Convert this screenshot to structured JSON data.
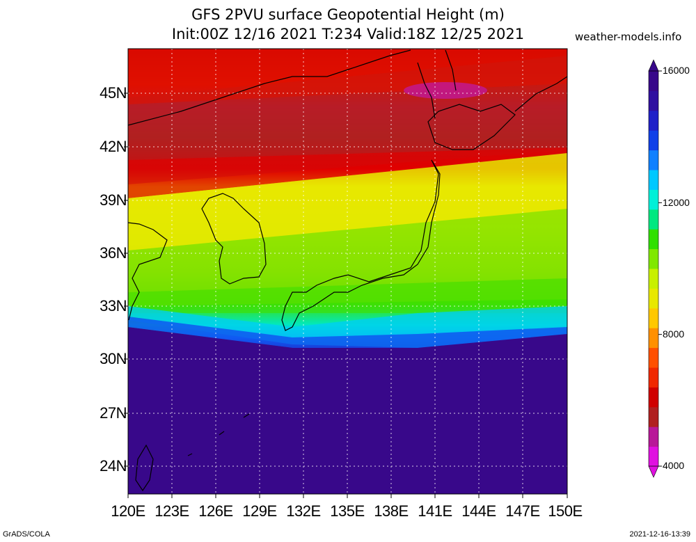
{
  "header": {
    "title_line1": "GFS 2PVU surface Geopotential Height (m)",
    "title_line2": "Init:00Z 12/16 2021 T:234 Valid:18Z 12/25 2021",
    "site": "weather-models.info"
  },
  "axes": {
    "lat_labels": [
      "45N",
      "42N",
      "39N",
      "36N",
      "33N",
      "30N",
      "27N",
      "24N"
    ],
    "lat_values": [
      45,
      42,
      39,
      36,
      33,
      30,
      27,
      24
    ],
    "lon_labels": [
      "120E",
      "123E",
      "126E",
      "129E",
      "132E",
      "135E",
      "138E",
      "141E",
      "144E",
      "147E",
      "150E"
    ],
    "lon_values": [
      120,
      123,
      126,
      129,
      132,
      135,
      138,
      141,
      144,
      147,
      150
    ]
  },
  "colorbar": {
    "labels": [
      "16000",
      "12000",
      "8000",
      "4000"
    ],
    "colors": [
      "#e010e0",
      "#b81898",
      "#b02020",
      "#d00000",
      "#f02800",
      "#ff5000",
      "#ff9000",
      "#ffc800",
      "#e8e800",
      "#c8f000",
      "#80e800",
      "#30e000",
      "#00e880",
      "#00f0d8",
      "#00c8ff",
      "#1080ff",
      "#1040e8",
      "#2020c8",
      "#3010a0",
      "#38088a"
    ]
  },
  "footer": {
    "left": "GrADS/COLA",
    "right": "2021-12-16-13:39"
  }
}
